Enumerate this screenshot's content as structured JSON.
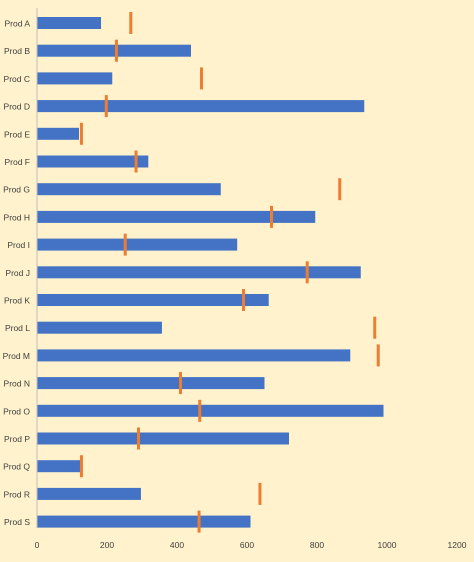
{
  "chart_data": {
    "type": "bar",
    "orientation": "horizontal",
    "title": "",
    "xlabel": "",
    "ylabel": "",
    "categories": [
      "Prod A",
      "Prod B",
      "Prod C",
      "Prod D",
      "Prod E",
      "Prod F",
      "Prod G",
      "Prod H",
      "Prod I",
      "Prod J",
      "Prod K",
      "Prod L",
      "Prod M",
      "Prod N",
      "Prod O",
      "Prod P",
      "Prod Q",
      "Prod R",
      "Prod S"
    ],
    "series": [
      {
        "type": "bar",
        "color": "#4472c4",
        "values": [
          183,
          440,
          215,
          935,
          120,
          318,
          525,
          795,
          572,
          925,
          662,
          357,
          895,
          650,
          990,
          720,
          128,
          297,
          610
        ]
      },
      {
        "type": "marker",
        "color": "#ed7d31",
        "values": [
          268,
          227,
          470,
          198,
          127,
          283,
          865,
          670,
          252,
          772,
          590,
          965,
          975,
          410,
          465,
          290,
          127,
          637,
          463
        ]
      }
    ],
    "xlim": [
      0,
      1200
    ],
    "xticks": [
      "0",
      "200",
      "400",
      "600",
      "800",
      "1000",
      "1200"
    ],
    "grid": false,
    "legend": "none"
  }
}
